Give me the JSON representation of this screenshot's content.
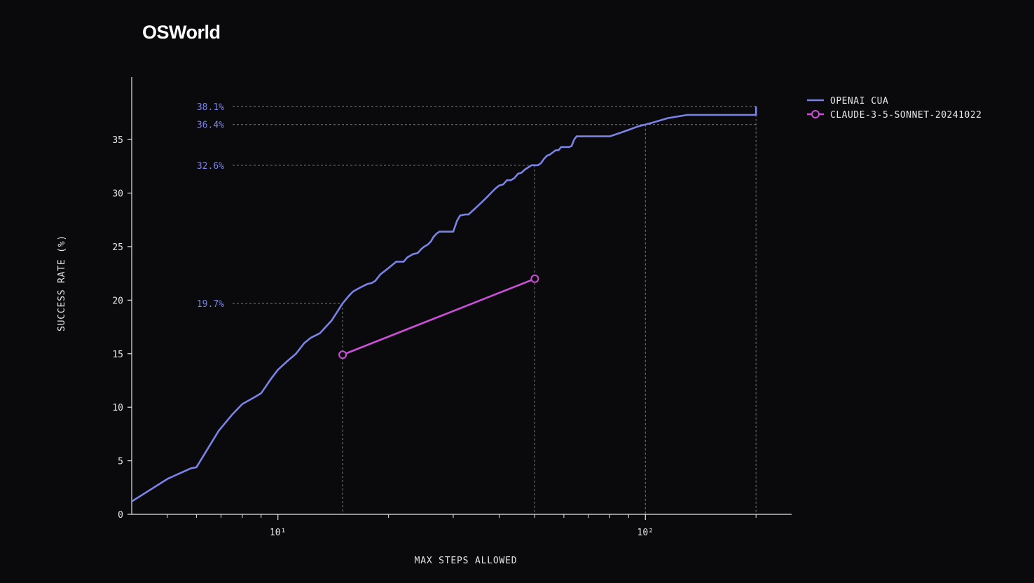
{
  "chart_data": {
    "type": "line",
    "title": "OSWorld",
    "xlabel": "MAX STEPS ALLOWED",
    "ylabel": "SUCCESS RATE (%)",
    "x_scale": "log",
    "xlim": [
      4,
      250
    ],
    "ylim": [
      0,
      40
    ],
    "y_ticks": [
      0,
      5,
      10,
      15,
      20,
      25,
      30,
      35
    ],
    "x_major_ticks": [
      {
        "value": 10,
        "label": "10¹"
      },
      {
        "value": 100,
        "label": "10²"
      }
    ],
    "x_minor_ticks": [
      5,
      6,
      7,
      8,
      9,
      20,
      30,
      40,
      50,
      60,
      70,
      80,
      90,
      200
    ],
    "grid": false,
    "legend": "top-right",
    "colors": {
      "background": "#0a0a0d",
      "openai": "#7b83e6",
      "claude": "#cc4fd8",
      "axis": "#e6e6e6",
      "guide": "#7a7a80",
      "annotation": "#7b83e6"
    },
    "series": [
      {
        "name": "OPENAI CUA",
        "color": "#7b83e6",
        "marker": "none",
        "x": [
          4,
          5,
          5.3,
          5.8,
          6,
          6.9,
          7.5,
          8,
          8.6,
          9,
          9.6,
          10,
          10.6,
          11.2,
          11.8,
          12.3,
          13,
          14,
          15,
          15.5,
          16,
          16.8,
          17.5,
          18,
          18.4,
          19,
          20,
          21,
          22,
          22.5,
          23.3,
          24,
          24.6,
          25,
          25.6,
          26.1,
          26.5,
          27,
          27.5,
          28.5,
          29.5,
          30,
          30.7,
          31.3,
          32.3,
          33,
          34,
          35,
          36,
          37,
          38,
          39,
          40,
          41,
          42,
          43,
          44,
          45,
          46,
          47,
          48,
          49,
          50,
          51,
          52,
          53,
          54,
          55,
          56,
          57,
          58,
          59,
          60,
          61,
          62,
          63,
          64,
          65,
          66,
          67,
          68,
          69,
          70,
          75,
          80,
          85,
          90,
          95,
          100,
          105,
          110,
          115,
          120,
          130,
          140,
          150,
          160,
          170,
          180,
          190,
          200,
          200
        ],
        "y": [
          1.2,
          3.3,
          3.7,
          4.3,
          4.4,
          7.8,
          9.3,
          10.3,
          10.9,
          11.3,
          12.7,
          13.5,
          14.3,
          15.0,
          16.0,
          16.5,
          16.9,
          18.1,
          19.7,
          20.3,
          20.8,
          21.2,
          21.5,
          21.6,
          21.8,
          22.4,
          23.0,
          23.6,
          23.6,
          24.0,
          24.3,
          24.4,
          24.8,
          25.0,
          25.2,
          25.5,
          25.9,
          26.2,
          26.4,
          26.4,
          26.4,
          26.4,
          27.4,
          27.9,
          28.0,
          28.0,
          28.4,
          28.8,
          29.2,
          29.6,
          30.0,
          30.4,
          30.7,
          30.8,
          31.2,
          31.2,
          31.4,
          31.8,
          31.9,
          32.2,
          32.4,
          32.6,
          32.6,
          32.6,
          32.8,
          33.2,
          33.5,
          33.6,
          33.8,
          34.0,
          34.0,
          34.3,
          34.3,
          34.3,
          34.3,
          34.4,
          35.0,
          35.3,
          35.3,
          35.3,
          35.3,
          35.3,
          35.3,
          35.3,
          35.3,
          35.6,
          35.9,
          36.2,
          36.4,
          36.6,
          36.8,
          37.0,
          37.1,
          37.3,
          37.3,
          37.3,
          37.3,
          37.3,
          37.3,
          37.3,
          37.3,
          38.1
        ]
      },
      {
        "name": "CLAUDE-3-5-SONNET-20241022",
        "color": "#cc4fd8",
        "marker": "circle",
        "x": [
          15,
          50
        ],
        "y": [
          14.9,
          22.0
        ]
      }
    ],
    "annotations": [
      {
        "label": "38.1%",
        "y": 38.1,
        "x_end": 200
      },
      {
        "label": "36.4%",
        "y": 36.4,
        "x_end": 200
      },
      {
        "label": "32.6%",
        "y": 32.6,
        "x_end": 50
      },
      {
        "label": "19.7%",
        "y": 19.7,
        "x_end": 15
      }
    ],
    "vertical_guides": [
      15,
      50,
      100,
      200
    ]
  }
}
